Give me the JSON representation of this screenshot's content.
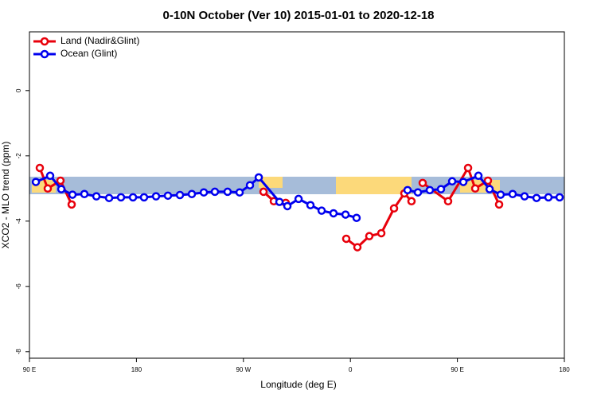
{
  "chart_data": {
    "type": "line",
    "title": "0-10N October (Ver 10)   2015-01-01 to 2020-12-18",
    "x_label": "Longitude (deg E)",
    "y_label": "XCO2 - MLO trend (ppm)",
    "xlim": [
      90,
      540
    ],
    "ylim": [
      -8.2,
      1.8
    ],
    "xticks": [
      {
        "value": 90,
        "label": "90 E"
      },
      180,
      {
        "value": 270,
        "label": "90 W"
      },
      {
        "value": 360,
        "label": "0"
      },
      {
        "value": 450,
        "label": "90 E"
      },
      {
        "value": 540,
        "label": "180"
      }
    ],
    "yticks": [
      0,
      -2,
      -4,
      -6,
      -8
    ],
    "legend": "top-left",
    "series": [
      {
        "name": "Land (Nadir&Glint)",
        "color": "#e8000b",
        "x": [
          98.7,
          105.4,
          116.1,
          125.5,
          null,
          286.9,
          295.6,
          305.6,
          null,
          356.5,
          365.9,
          375.9,
          386.0,
          396.7,
          405.4,
          411.4,
          null,
          420.8,
          442.2,
          459.0,
          465.0,
          475.7,
          485.1
        ],
        "values": [
          -2.37,
          -3.0,
          -2.76,
          -3.49,
          null,
          -3.1,
          -3.39,
          -3.44,
          null,
          -4.54,
          -4.8,
          -4.46,
          -4.37,
          -3.61,
          -3.15,
          -3.39,
          null,
          -2.83,
          -3.39,
          -2.37,
          -3.0,
          -2.76,
          -3.49
        ]
      },
      {
        "name": "Ocean (Glint)",
        "color": "#0000ee",
        "x": [
          95.4,
          107.4,
          116.8,
          126.2,
          136.2,
          146.3,
          157.0,
          167.0,
          177.1,
          186.4,
          196.5,
          206.5,
          216.6,
          226.6,
          236.7,
          246.0,
          256.7,
          266.8,
          275.5,
          282.9,
          300.3,
          307.0,
          316.4,
          326.4,
          335.8,
          345.8,
          355.9,
          365.2,
          null,
          408.1,
          416.8,
          426.8,
          436.2,
          445.6,
          455.0,
          467.7,
          477.1,
          486.4,
          496.5,
          506.5,
          516.6,
          526.6,
          536.0
        ],
        "values": [
          -2.8,
          -2.61,
          -3.02,
          -3.19,
          -3.17,
          -3.24,
          -3.29,
          -3.27,
          -3.27,
          -3.27,
          -3.24,
          -3.22,
          -3.2,
          -3.17,
          -3.12,
          -3.1,
          -3.1,
          -3.12,
          -2.9,
          -2.66,
          -3.41,
          -3.54,
          -3.32,
          -3.51,
          -3.68,
          -3.76,
          -3.8,
          -3.9,
          null,
          -3.05,
          -3.12,
          -3.05,
          -3.02,
          -2.78,
          -2.8,
          -2.61,
          -3.02,
          -3.19,
          -3.17,
          -3.24,
          -3.29,
          -3.27,
          -3.27
        ]
      }
    ]
  }
}
